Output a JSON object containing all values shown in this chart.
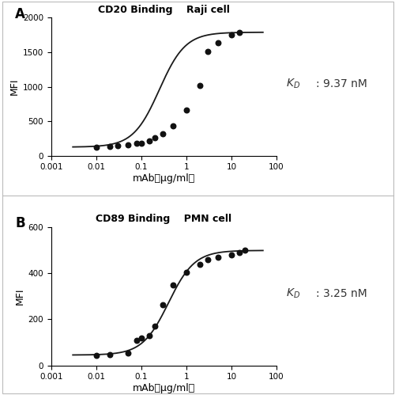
{
  "panel_A": {
    "title": "CD20 Binding    Raji cell",
    "label": "A",
    "kd_val": ": 9.37 nM",
    "x_data": [
      0.01,
      0.02,
      0.03,
      0.05,
      0.08,
      0.1,
      0.15,
      0.2,
      0.3,
      0.5,
      1.0,
      2.0,
      3.0,
      5.0,
      10.0,
      15.0
    ],
    "y_data": [
      125,
      135,
      150,
      160,
      175,
      185,
      215,
      260,
      320,
      430,
      660,
      1020,
      1510,
      1640,
      1750,
      1790
    ],
    "ylim": [
      0,
      2000
    ],
    "yticks": [
      0,
      500,
      1000,
      1500,
      2000
    ],
    "ylabel": "MFI",
    "xlabel": "mAb（μg/ml）"
  },
  "panel_B": {
    "title": "CD89 Binding    PMN cell",
    "label": "B",
    "kd_val": ": 3.25 nM",
    "x_data": [
      0.01,
      0.02,
      0.05,
      0.08,
      0.1,
      0.15,
      0.2,
      0.3,
      0.5,
      1.0,
      2.0,
      3.0,
      5.0,
      10.0,
      15.0,
      20.0
    ],
    "y_data": [
      45,
      48,
      52,
      108,
      118,
      128,
      170,
      262,
      350,
      405,
      440,
      460,
      470,
      480,
      490,
      500
    ],
    "ylim": [
      0,
      600
    ],
    "yticks": [
      0,
      200,
      400,
      600
    ],
    "ylabel": "MFI",
    "xlabel": "mAb（μg/ml）"
  },
  "xlim": [
    0.001,
    100
  ],
  "xticks": [
    0.001,
    0.01,
    0.1,
    1,
    10,
    100
  ],
  "xtick_labels": [
    "0.001",
    "0.01",
    "0.1",
    "1",
    "10",
    "100"
  ],
  "line_color": "#1a1a1a",
  "dot_color": "#111111"
}
